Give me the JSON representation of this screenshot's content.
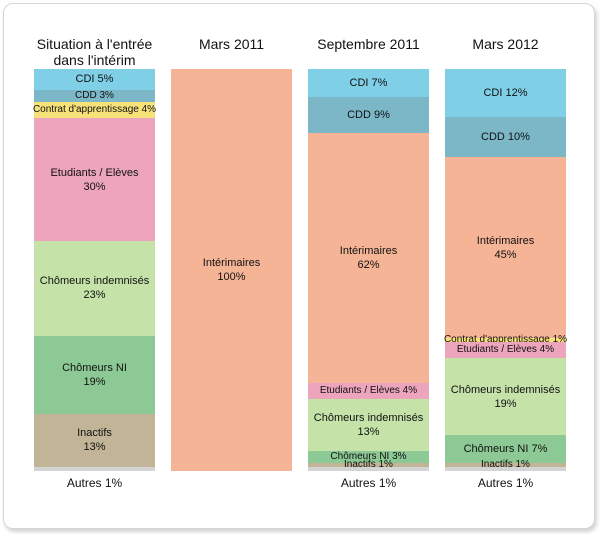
{
  "chart_data": {
    "type": "bar",
    "stacked": true,
    "orientation": "vertical",
    "columns": [
      {
        "title": "Situation à l'entrée\ndans l'intérim",
        "footer": "Autres 1%",
        "segments": [
          {
            "name": "CDI",
            "value": 5,
            "label": "CDI  5%",
            "color": "#7fcfe6"
          },
          {
            "name": "CDD",
            "value": 3,
            "label": "CDD  3%",
            "color": "#7bb7c6"
          },
          {
            "name": "Contrat d'apprentissage",
            "value": 4,
            "label": "Contrat d'apprentissage 4%",
            "color": "#f7e27a"
          },
          {
            "name": "Etudiants / Elèves",
            "value": 30,
            "label": "Etudiants / Elèves\n30%",
            "color": "#eda4bd"
          },
          {
            "name": "Chômeurs indemnisés",
            "value": 23,
            "label": "Chômeurs indemnisés\n23%",
            "color": "#c5e3a9"
          },
          {
            "name": "Chômeurs NI",
            "value": 19,
            "label": "Chômeurs NI\n19%",
            "color": "#8cc994"
          },
          {
            "name": "Inactifs",
            "value": 13,
            "label": "Inactifs\n13%",
            "color": "#c2b496"
          },
          {
            "name": "Autres",
            "value": 1,
            "label": "",
            "color": "#d4d4d4"
          }
        ]
      },
      {
        "title": "Mars 2011",
        "footer": "",
        "segments": [
          {
            "name": "Intérimaires",
            "value": 100,
            "label": "Intérimaires\n100%",
            "color": "#f5b496"
          }
        ]
      },
      {
        "title": "Septembre 2011",
        "footer": "Autres 1%",
        "segments": [
          {
            "name": "CDI",
            "value": 7,
            "label": "CDI  7%",
            "color": "#7fcfe6"
          },
          {
            "name": "CDD",
            "value": 9,
            "label": "CDD  9%",
            "color": "#7bb7c6"
          },
          {
            "name": "Intérimaires",
            "value": 62,
            "label": "Intérimaires\n62%",
            "color": "#f5b496"
          },
          {
            "name": "Etudiants / Elèves",
            "value": 4,
            "label": "Etudiants / Elèves   4%",
            "color": "#eda4bd"
          },
          {
            "name": "Chômeurs indemnisés",
            "value": 13,
            "label": "Chômeurs indemnisés\n13%",
            "color": "#c5e3a9"
          },
          {
            "name": "Chômeurs NI",
            "value": 3,
            "label": "Chômeurs NI   3%",
            "color": "#8cc994"
          },
          {
            "name": "Inactifs",
            "value": 1,
            "label": "Inactifs 1%",
            "color": "#c2b496"
          },
          {
            "name": "Autres",
            "value": 1,
            "label": "",
            "color": "#d4d4d4"
          }
        ]
      },
      {
        "title": "Mars 2012",
        "footer": "Autres 1%",
        "segments": [
          {
            "name": "CDI",
            "value": 12,
            "label": "CDI  12%",
            "color": "#7fcfe6"
          },
          {
            "name": "CDD",
            "value": 10,
            "label": "CDD  10%",
            "color": "#7bb7c6"
          },
          {
            "name": "Intérimaires",
            "value": 45,
            "label": "Intérimaires\n45%",
            "color": "#f5b496"
          },
          {
            "name": "Contrat d'apprentissage",
            "value": 1,
            "label": "Contrat d'apprentissage 1%",
            "color": "#f7e27a"
          },
          {
            "name": "Etudiants / Elèves",
            "value": 4,
            "label": "Etudiants / Elèves 4%",
            "color": "#eda4bd"
          },
          {
            "name": "Chômeurs indemnisés",
            "value": 19,
            "label": "Chômeurs indemnisés\n19%",
            "color": "#c5e3a9"
          },
          {
            "name": "Chômeurs NI",
            "value": 7,
            "label": "Chômeurs NI   7%",
            "color": "#8cc994"
          },
          {
            "name": "Inactifs",
            "value": 1,
            "label": "Inactifs  1%",
            "color": "#c2b496"
          },
          {
            "name": "Autres",
            "value": 1,
            "label": "",
            "color": "#d4d4d4"
          }
        ]
      }
    ]
  }
}
